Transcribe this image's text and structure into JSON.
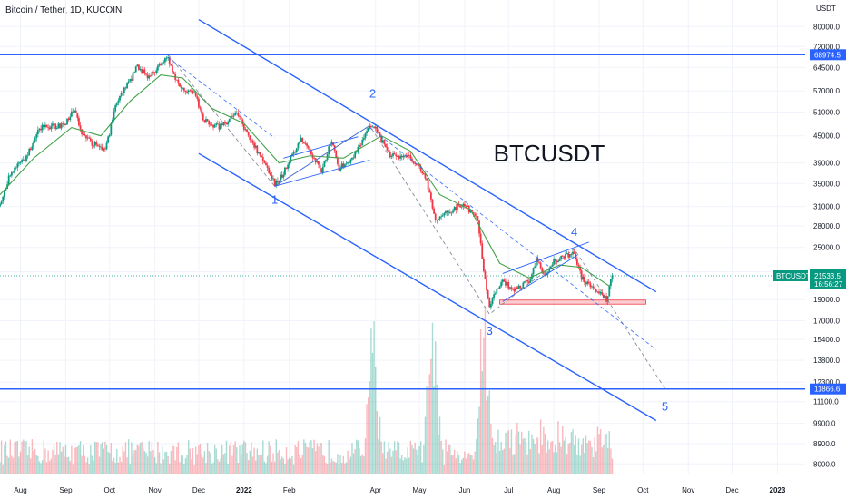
{
  "header": {
    "title": "Bitcoin / Tether, 1D, KUCOIN"
  },
  "annotation_text": "BTCUSDT",
  "chart_data": {
    "type": "candlestick",
    "symbol": "BTCUSDT",
    "exchange": "KUCOIN",
    "interval": "1D",
    "currency": "USDT",
    "y_scale": "log",
    "ylim": [
      7600,
      92000
    ],
    "xlim": [
      "2021-07-18",
      "2023-01-20"
    ],
    "price_ticks": [
      80000,
      72000,
      64500,
      57000,
      51000,
      45000,
      39000,
      35000,
      31000,
      28000,
      25000,
      22000,
      19000,
      17000,
      15400,
      13800,
      12300,
      11100,
      9900,
      8900,
      8000
    ],
    "volume_ticks_at_price": [
      9900,
      8900,
      8000
    ],
    "x_ticks": [
      {
        "label": "Aug",
        "date": "2021-08-01",
        "bold": false
      },
      {
        "label": "Sep",
        "date": "2021-09-01",
        "bold": false
      },
      {
        "label": "Oct",
        "date": "2021-10-01",
        "bold": false
      },
      {
        "label": "Nov",
        "date": "2021-11-01",
        "bold": false
      },
      {
        "label": "Dec",
        "date": "2021-12-01",
        "bold": false
      },
      {
        "label": "2022",
        "date": "2022-01-01",
        "bold": true
      },
      {
        "label": "Feb",
        "date": "2022-02-01",
        "bold": false
      },
      {
        "label": "Apr",
        "date": "2022-04-01",
        "bold": false
      },
      {
        "label": "May",
        "date": "2022-05-01",
        "bold": false
      },
      {
        "label": "Jun",
        "date": "2022-06-01",
        "bold": false
      },
      {
        "label": "Jul",
        "date": "2022-07-01",
        "bold": false
      },
      {
        "label": "Aug",
        "date": "2022-08-01",
        "bold": false
      },
      {
        "label": "Sep",
        "date": "2022-09-01",
        "bold": false
      },
      {
        "label": "Oct",
        "date": "2022-10-01",
        "bold": false
      },
      {
        "label": "Nov",
        "date": "2022-11-01",
        "bold": false
      },
      {
        "label": "Dec",
        "date": "2022-12-01",
        "bold": false
      },
      {
        "label": "2023",
        "date": "2023-01-01",
        "bold": true
      }
    ],
    "price_path": [
      [
        "2021-07-18",
        31000
      ],
      [
        "2021-07-25",
        37000
      ],
      [
        "2021-08-05",
        40000
      ],
      [
        "2021-08-14",
        47000
      ],
      [
        "2021-08-30",
        47500
      ],
      [
        "2021-09-07",
        51500
      ],
      [
        "2021-09-12",
        45500
      ],
      [
        "2021-09-20",
        43000
      ],
      [
        "2021-09-28",
        41500
      ],
      [
        "2021-10-06",
        54000
      ],
      [
        "2021-10-15",
        60000
      ],
      [
        "2021-10-20",
        65000
      ],
      [
        "2021-10-28",
        61000
      ],
      [
        "2021-11-09",
        68500
      ],
      [
        "2021-11-18",
        58000
      ],
      [
        "2021-11-28",
        57000
      ],
      [
        "2021-12-04",
        49000
      ],
      [
        "2021-12-15",
        47000
      ],
      [
        "2021-12-27",
        50500
      ],
      [
        "2022-01-10",
        41500
      ],
      [
        "2022-01-22",
        35000
      ],
      [
        "2022-01-27",
        36500
      ],
      [
        "2022-02-09",
        44500
      ],
      [
        "2022-02-23",
        37500
      ],
      [
        "2022-03-02",
        44000
      ],
      [
        "2022-03-07",
        38000
      ],
      [
        "2022-03-15",
        39500
      ],
      [
        "2022-03-28",
        47000
      ],
      [
        "2022-04-01",
        46500
      ],
      [
        "2022-04-11",
        40500
      ],
      [
        "2022-04-25",
        40000
      ],
      [
        "2022-05-05",
        36500
      ],
      [
        "2022-05-12",
        29000
      ],
      [
        "2022-05-31",
        31500
      ],
      [
        "2022-06-10",
        29000
      ],
      [
        "2022-06-14",
        22000
      ],
      [
        "2022-06-18",
        18500
      ],
      [
        "2022-06-26",
        21000
      ],
      [
        "2022-07-05",
        20000
      ],
      [
        "2022-07-15",
        21000
      ],
      [
        "2022-07-20",
        23500
      ],
      [
        "2022-07-26",
        21500
      ],
      [
        "2022-08-01",
        23300
      ],
      [
        "2022-08-10",
        23900
      ],
      [
        "2022-08-15",
        24400
      ],
      [
        "2022-08-20",
        21300
      ],
      [
        "2022-08-28",
        20200
      ],
      [
        "2022-09-06",
        19000
      ],
      [
        "2022-09-10",
        21533.5
      ]
    ],
    "moving_average_path": [
      [
        "2021-07-18",
        33000
      ],
      [
        "2021-08-10",
        40000
      ],
      [
        "2021-09-05",
        47000
      ],
      [
        "2021-09-25",
        45000
      ],
      [
        "2021-10-15",
        54000
      ],
      [
        "2021-11-05",
        62000
      ],
      [
        "2021-11-20",
        61000
      ],
      [
        "2021-12-10",
        52000
      ],
      [
        "2022-01-01",
        48000
      ],
      [
        "2022-01-25",
        39000
      ],
      [
        "2022-02-15",
        40500
      ],
      [
        "2022-03-10",
        40000
      ],
      [
        "2022-04-05",
        45000
      ],
      [
        "2022-04-25",
        41500
      ],
      [
        "2022-05-15",
        33000
      ],
      [
        "2022-06-05",
        30500
      ],
      [
        "2022-06-25",
        23000
      ],
      [
        "2022-07-15",
        21300
      ],
      [
        "2022-08-05",
        22800
      ],
      [
        "2022-08-20",
        22500
      ],
      [
        "2022-09-08",
        20400
      ]
    ],
    "volume_bars": {
      "from": "2021-07-18",
      "to": "2022-09-10",
      "spikes": [
        "2022-03-30",
        "2022-05-10",
        "2022-06-14"
      ]
    },
    "horizontal_levels": [
      {
        "price": 68974.5,
        "label": "68974.5",
        "color": "#2962ff"
      },
      {
        "price": 11866.6,
        "label": "11866.6",
        "color": "#2962ff"
      }
    ],
    "current_price": {
      "symbol_label": "BTCUSDT",
      "price": 21533.5,
      "price_label": "21533.5",
      "countdown": "16:56:27",
      "color": "#089981"
    },
    "support_zone": {
      "from": "2022-06-25",
      "to": "2022-10-03",
      "low": 18550,
      "high": 18950,
      "color": "#f23645"
    },
    "channel_lines": [
      {
        "points": [
          [
            "2021-12-01",
            83000
          ],
          [
            "2022-10-10",
            19800
          ]
        ],
        "color": "#2962ff"
      },
      {
        "points": [
          [
            "2021-12-01",
            41000
          ],
          [
            "2022-10-10",
            10050
          ]
        ],
        "color": "#2962ff"
      }
    ],
    "wedges": [
      {
        "lines": [
          [
            [
              "2022-01-22",
              34500
            ],
            [
              "2022-03-28",
              47500
            ]
          ],
          [
            [
              "2022-01-22",
              34500
            ],
            [
              "2022-03-28",
              39600
            ]
          ],
          [
            [
              "2022-01-28",
              40000
            ],
            [
              "2022-03-20",
              44800
            ]
          ]
        ],
        "color": "#2962ff"
      },
      {
        "lines": [
          [
            [
              "2022-06-27",
              21800
            ],
            [
              "2022-08-25",
              25700
            ]
          ],
          [
            [
              "2022-06-27",
              18800
            ],
            [
              "2022-08-17",
              24000
            ]
          ]
        ],
        "color": "#2962ff"
      }
    ],
    "dashed_paths": [
      {
        "points": [
          [
            "2021-11-10",
            69000
          ],
          [
            "2022-01-22",
            34500
          ],
          [
            "2022-03-28",
            47500
          ],
          [
            "2022-06-18",
            17600
          ],
          [
            "2022-08-15",
            24800
          ],
          [
            "2022-10-16",
            11900
          ]
        ],
        "color": "#787b86"
      },
      {
        "points": [
          [
            "2021-11-10",
            68000
          ],
          [
            "2022-01-22",
            44500
          ]
        ],
        "color": "#2962ff"
      },
      {
        "points": [
          [
            "2022-03-28",
            47000
          ],
          [
            "2022-10-10",
            14600
          ]
        ],
        "color": "#2962ff"
      }
    ],
    "wave_labels": [
      {
        "label": "1",
        "date": "2022-01-22",
        "price": 31500
      },
      {
        "label": "2",
        "date": "2022-03-30",
        "price": 55000
      },
      {
        "label": "3",
        "date": "2022-06-18",
        "price": 15800
      },
      {
        "label": "4",
        "date": "2022-08-15",
        "price": 26600
      },
      {
        "label": "5",
        "date": "2022-10-16",
        "price": 10600
      }
    ]
  }
}
